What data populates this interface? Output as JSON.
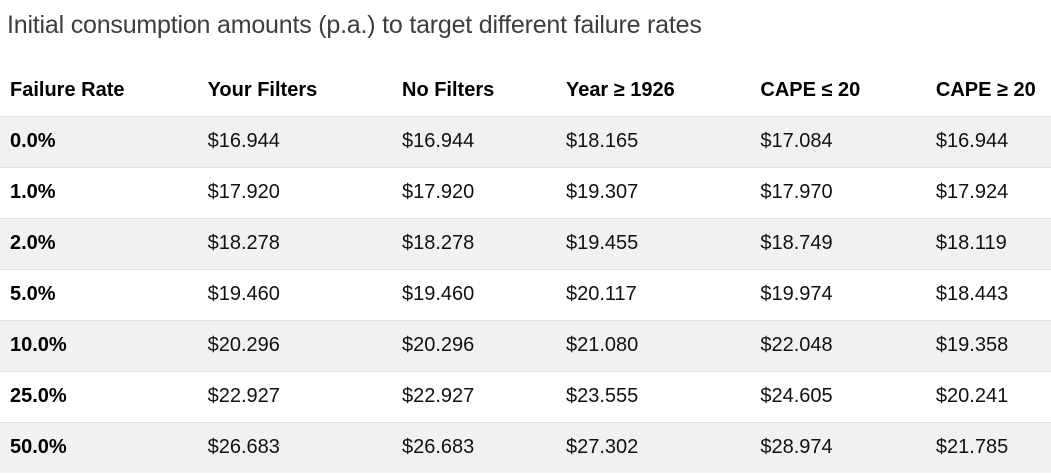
{
  "title": "Initial consumption amounts (p.a.) to target different failure rates",
  "chart_data": {
    "type": "table",
    "title": "Initial consumption amounts (p.a.) to target different failure rates",
    "columns": [
      "Failure Rate",
      "Your Filters",
      "No Filters",
      "Year ≥ 1926",
      "CAPE ≤ 20",
      "CAPE ≥ 20"
    ],
    "rows": [
      {
        "label": "0.0%",
        "values": [
          "$16.944",
          "$16.944",
          "$18.165",
          "$17.084",
          "$16.944"
        ]
      },
      {
        "label": "1.0%",
        "values": [
          "$17.920",
          "$17.920",
          "$19.307",
          "$17.970",
          "$17.924"
        ]
      },
      {
        "label": "2.0%",
        "values": [
          "$18.278",
          "$18.278",
          "$19.455",
          "$18.749",
          "$18.119"
        ]
      },
      {
        "label": "5.0%",
        "values": [
          "$19.460",
          "$19.460",
          "$20.117",
          "$19.974",
          "$18.443"
        ]
      },
      {
        "label": "10.0%",
        "values": [
          "$20.296",
          "$20.296",
          "$21.080",
          "$22.048",
          "$19.358"
        ]
      },
      {
        "label": "25.0%",
        "values": [
          "$22.927",
          "$22.927",
          "$23.555",
          "$24.605",
          "$20.241"
        ]
      },
      {
        "label": "50.0%",
        "values": [
          "$26.683",
          "$26.683",
          "$27.302",
          "$28.974",
          "$21.785"
        ]
      }
    ],
    "layout": {
      "stripe_rows": "odd",
      "first_column_bold": true,
      "header_bold": true
    }
  },
  "colors": {
    "stripe": "#f1f1f2",
    "divider": "#dfe1e4",
    "title_text": "#3d3d3d",
    "body_text": "#111111"
  }
}
